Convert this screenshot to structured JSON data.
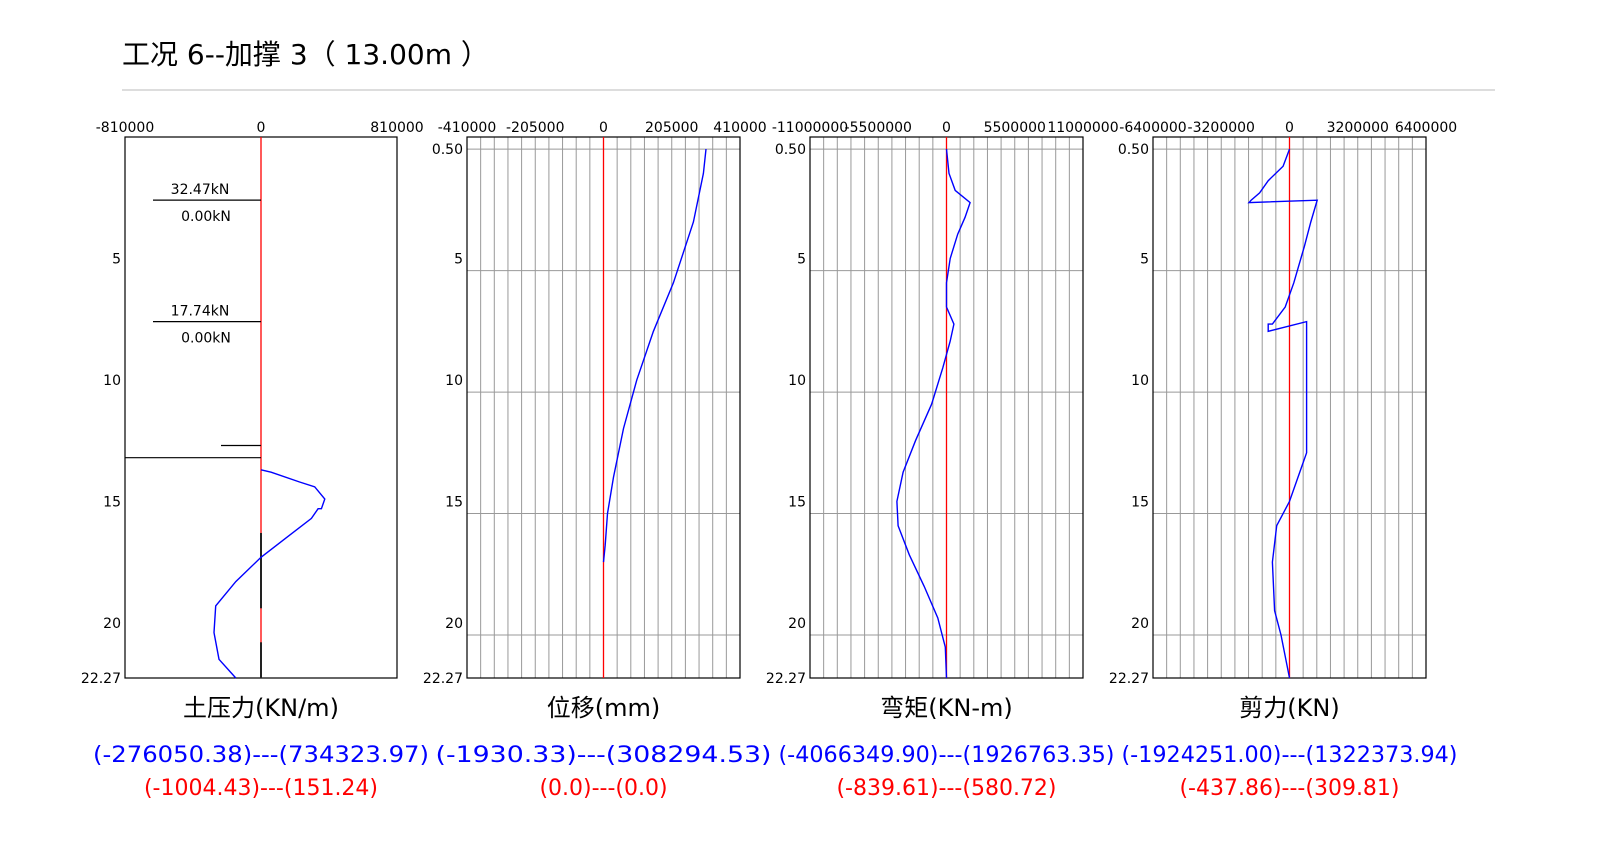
{
  "title": "工况 6--加撑 3（ 13.00m ）",
  "colors": {
    "result": "#0000ff",
    "reference": "#ff0000",
    "frame": "#000000",
    "grid": "#999999"
  },
  "chart_data": [
    {
      "id": "earth-pressure",
      "type": "line",
      "caption": "土压力(KN/m)",
      "x_ticks": [
        "-810000",
        "0",
        "810000"
      ],
      "xlim": [
        -810000,
        810000
      ],
      "y_ticks": [
        "5",
        "10",
        "15",
        "20",
        "22.27"
      ],
      "ylim": [
        0,
        22.27
      ],
      "grid": false,
      "series": [
        {
          "color": "#0000ff",
          "points": [
            [
              0,
              13.7
            ],
            [
              60000,
              13.8
            ],
            [
              230000,
              14.2
            ],
            [
              320000,
              14.4
            ],
            [
              380000,
              14.9
            ],
            [
              360000,
              15.3
            ],
            [
              340000,
              15.3
            ],
            [
              300000,
              15.7
            ],
            [
              150000,
              16.5
            ],
            [
              0,
              17.3
            ],
            [
              -150000,
              18.3
            ],
            [
              -270000,
              19.3
            ],
            [
              -280000,
              20.4
            ],
            [
              -250000,
              21.5
            ],
            [
              -150000,
              22.27
            ]
          ]
        }
      ],
      "struts": [
        {
          "depth": 2.6,
          "upper": "32.47kN",
          "lower": "0.00kN"
        },
        {
          "depth": 7.6,
          "upper": "17.74kN",
          "lower": "0.00kN"
        }
      ],
      "ranges": [
        "(-276050.38)---(734323.97)",
        "(-1004.43)---(151.24)"
      ]
    },
    {
      "id": "displacement",
      "type": "line",
      "caption": "位移(mm)",
      "x_ticks": [
        "-410000",
        "-205000",
        "0",
        "205000",
        "410000"
      ],
      "xlim": [
        -410000,
        410000
      ],
      "y_ticks": [
        "0.50",
        "5",
        "10",
        "15",
        "20",
        "22.27"
      ],
      "ylim": [
        0,
        22.27
      ],
      "grid": true,
      "series": [
        {
          "color": "#0000ff",
          "points": [
            [
              308000,
              0.5
            ],
            [
              300000,
              1.5
            ],
            [
              270000,
              3.5
            ],
            [
              210000,
              6.0
            ],
            [
              150000,
              8.0
            ],
            [
              100000,
              10.0
            ],
            [
              60000,
              12.0
            ],
            [
              30000,
              14.0
            ],
            [
              12000,
              15.5
            ],
            [
              5000,
              16.8
            ],
            [
              0,
              17.5
            ]
          ]
        }
      ],
      "ranges": [
        "(-1930.33)---(308294.53)",
        "(0.0)---(0.0)"
      ]
    },
    {
      "id": "bending-moment",
      "type": "line",
      "caption": "弯矩(KN-m)",
      "x_ticks": [
        "-11000000",
        "-5500000",
        "0",
        "5500000",
        "11000000"
      ],
      "xlim": [
        -11000000,
        11000000
      ],
      "y_ticks": [
        "0.50",
        "5",
        "10",
        "15",
        "20",
        "22.27"
      ],
      "ylim": [
        0,
        22.27
      ],
      "grid": true,
      "series": [
        {
          "color": "#0000ff",
          "points": [
            [
              0,
              0.5
            ],
            [
              200000,
              1.5
            ],
            [
              700000,
              2.2
            ],
            [
              1900000,
              2.7
            ],
            [
              1500000,
              3.3
            ],
            [
              900000,
              4.0
            ],
            [
              300000,
              5.0
            ],
            [
              0,
              6.0
            ],
            [
              0,
              7.0
            ],
            [
              600000,
              7.7
            ],
            [
              300000,
              8.4
            ],
            [
              -300000,
              9.5
            ],
            [
              -1200000,
              11.0
            ],
            [
              -2500000,
              12.5
            ],
            [
              -3500000,
              13.8
            ],
            [
              -4000000,
              15.0
            ],
            [
              -3900000,
              16.0
            ],
            [
              -3000000,
              17.2
            ],
            [
              -1800000,
              18.5
            ],
            [
              -700000,
              19.8
            ],
            [
              -100000,
              21.0
            ],
            [
              0,
              22.27
            ]
          ]
        }
      ],
      "ranges": [
        "(-4066349.90)---(1926763.35)",
        "(-839.61)---(580.72)"
      ]
    },
    {
      "id": "shear-force",
      "type": "line",
      "caption": "剪力(KN)",
      "x_ticks": [
        "-6400000",
        "-3200000",
        "0",
        "3200000",
        "6400000"
      ],
      "xlim": [
        -6400000,
        6400000
      ],
      "y_ticks": [
        "0.50",
        "5",
        "10",
        "15",
        "20",
        "22.27"
      ],
      "ylim": [
        0,
        22.27
      ],
      "grid": true,
      "series": [
        {
          "color": "#0000ff",
          "points": [
            [
              0,
              0.5
            ],
            [
              -300000,
              1.2
            ],
            [
              -1000000,
              1.8
            ],
            [
              -1400000,
              2.3
            ],
            [
              -1800000,
              2.6
            ],
            [
              -1900000,
              2.7
            ],
            [
              1300000,
              2.6
            ],
            [
              1000000,
              3.5
            ],
            [
              700000,
              4.5
            ],
            [
              200000,
              6.0
            ],
            [
              -200000,
              7.0
            ],
            [
              -800000,
              7.7
            ],
            [
              -1000000,
              7.7
            ],
            [
              -1000000,
              8.0
            ],
            [
              800000,
              7.6
            ],
            [
              800000,
              9.0
            ],
            [
              800000,
              13.0
            ],
            [
              600000,
              13.5
            ],
            [
              0,
              15.0
            ],
            [
              -600000,
              16.0
            ],
            [
              -800000,
              17.5
            ],
            [
              -700000,
              19.5
            ],
            [
              -400000,
              20.5
            ],
            [
              0,
              22.27
            ]
          ]
        }
      ],
      "ranges": [
        "(-1924251.00)---(1322373.94)",
        "(-437.86)---(309.81)"
      ]
    }
  ]
}
